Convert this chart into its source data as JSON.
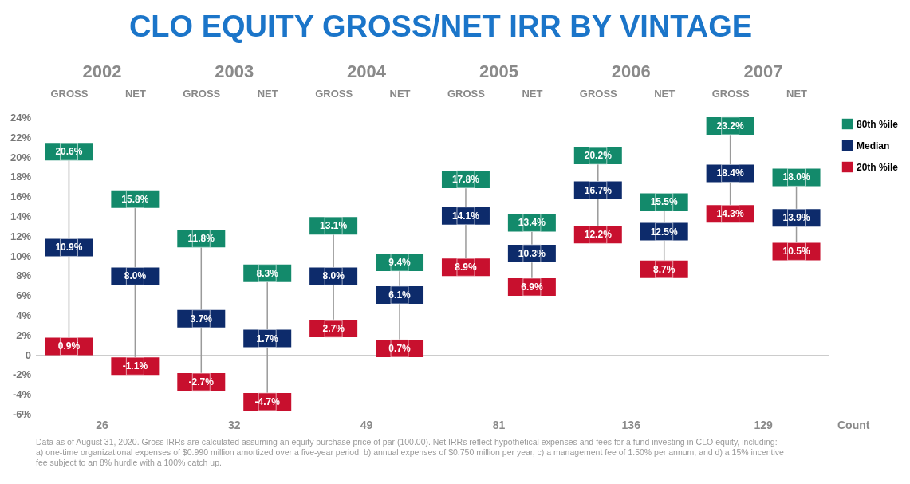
{
  "chart_data": {
    "type": "scatter",
    "title": "CLO EQUITY GROSS/NET IRR BY VINTAGE",
    "categories": [
      "GROSS",
      "NET",
      "GROSS",
      "NET",
      "GROSS",
      "NET",
      "GROSS",
      "NET",
      "GROSS",
      "NET",
      "GROSS",
      "NET"
    ],
    "series": [
      {
        "name": "80th %ile",
        "color": "#138a6b",
        "values": [
          20.6,
          15.8,
          11.8,
          8.3,
          13.1,
          9.4,
          17.8,
          13.4,
          20.2,
          15.5,
          23.2,
          18.0
        ],
        "value_labels": [
          "20.6%",
          "15.8%",
          "11.8%",
          "8.3%",
          "13.1%",
          "9.4%",
          "17.8%",
          "13.4%",
          "20.2%",
          "15.5%",
          "23.2%",
          "18.0%"
        ]
      },
      {
        "name": "Median",
        "color": "#0d2b6b",
        "values": [
          10.9,
          8.0,
          3.7,
          1.7,
          8.0,
          6.1,
          14.1,
          10.3,
          16.7,
          12.5,
          18.4,
          13.9
        ],
        "value_labels": [
          "10.9%",
          "8.0%",
          "3.7%",
          "1.7%",
          "8.0%",
          "6.1%",
          "14.1%",
          "10.3%",
          "16.7%",
          "12.5%",
          "18.4%",
          "13.9%"
        ]
      },
      {
        "name": "20th %ile",
        "color": "#c8102e",
        "values": [
          0.9,
          -1.1,
          -2.7,
          -4.7,
          2.7,
          0.7,
          8.9,
          6.9,
          12.2,
          8.7,
          14.3,
          10.5
        ],
        "value_labels": [
          "0.9%",
          "-1.1%",
          "-2.7%",
          "-4.7%",
          "2.7%",
          "0.7%",
          "8.9%",
          "6.9%",
          "12.2%",
          "8.7%",
          "14.3%",
          "10.5%"
        ]
      }
    ],
    "ylim": [
      -6,
      24
    ],
    "yticks": [
      {
        "value": -6,
        "label": "-6%"
      },
      {
        "value": -4,
        "label": "-4%"
      },
      {
        "value": -2,
        "label": "-2%"
      },
      0,
      {
        "value": 2,
        "label": "2%"
      },
      {
        "value": 4,
        "label": "4%"
      },
      {
        "value": 6,
        "label": "6%"
      },
      {
        "value": 8,
        "label": "8%"
      },
      {
        "value": 10,
        "label": "10%"
      },
      {
        "value": 12,
        "label": "12%"
      },
      {
        "value": 14,
        "label": "14%"
      },
      {
        "value": 16,
        "label": "16%"
      },
      {
        "value": 18,
        "label": "18%"
      },
      {
        "value": 20,
        "label": "20%"
      },
      {
        "value": 22,
        "label": "22%"
      },
      {
        "value": 24,
        "label": "24%"
      }
    ],
    "ref_lines": [
      {
        "axis": "y",
        "value": 0,
        "color": "#cccccc"
      }
    ],
    "marker": "square",
    "legend": "right",
    "annotations": [
      "2002",
      "2003",
      "2004",
      "2005",
      "2006",
      "2007",
      "26",
      "32",
      "49",
      "81",
      "136",
      "129",
      "Count",
      "Data as of August 31, 2020. Gross IRRs are calculated assuming an equity purchase price of par (100.00). Net IRRs reflect hypothetical expenses and fees for a fund investing in CLO equity, including: a) one-time organizational expenses of $0.990 million amortized over a five-year period, b) annual expenses of $0.750 million per year, c) a management fee of 1.50% per annum, and d) a 15% incentive fee subject to an 8% hurdle with a 100% catch up."
    ]
  }
}
